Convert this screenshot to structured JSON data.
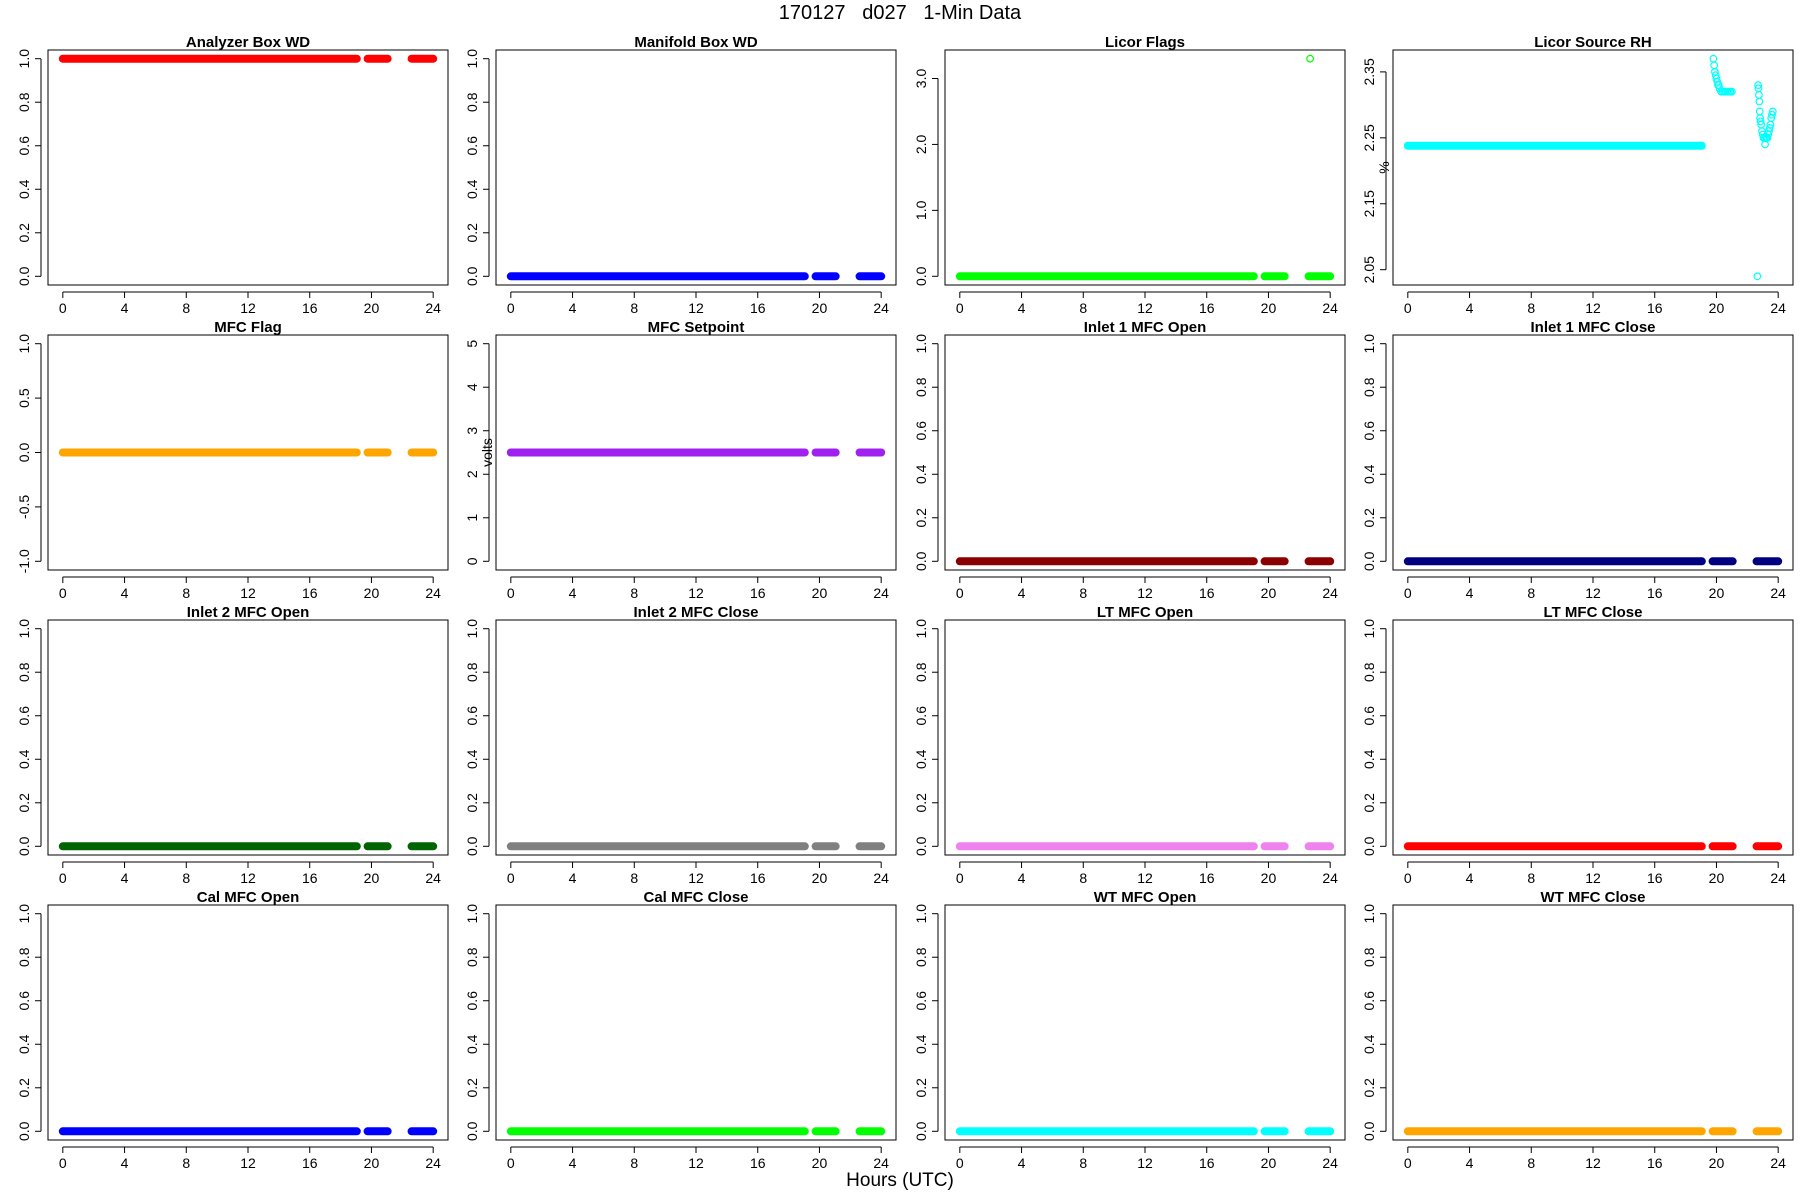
{
  "page": {
    "title": "170127   d027   1-Min Data",
    "xlabel": "Hours (UTC)"
  },
  "colors": {
    "red": "#ff0000",
    "blue": "#0000ff",
    "green": "#00ff00",
    "cyan": "#00ffff",
    "orange": "#ffa500",
    "purple": "#a020f0",
    "darkred": "#8b0000",
    "navy": "#000080",
    "darkgreen": "#006400",
    "gray": "#808080",
    "violet": "#ee82ee"
  },
  "chart_data": [
    {
      "type": "scatter",
      "title": "Analyzer Box WD",
      "ylabel": "",
      "color": "#ff0000",
      "xlim": [
        0,
        24
      ],
      "xticks": [
        0,
        4,
        8,
        12,
        16,
        20,
        24
      ],
      "ylim": [
        0,
        1
      ],
      "yticks": [
        0.0,
        0.2,
        0.4,
        0.6,
        0.8,
        1.0
      ],
      "ytick_labels": [
        "0.0",
        "0.2",
        "0.4",
        "0.6",
        "0.8",
        "1.0"
      ],
      "segments": [
        {
          "x": [
            0,
            19.05
          ],
          "y": 1
        },
        {
          "x": [
            19.75,
            21.05
          ],
          "y": 1
        },
        {
          "x": [
            22.6,
            24
          ],
          "y": 1
        }
      ]
    },
    {
      "type": "scatter",
      "title": "Manifold Box WD",
      "ylabel": "",
      "color": "#0000ff",
      "xlim": [
        0,
        24
      ],
      "xticks": [
        0,
        4,
        8,
        12,
        16,
        20,
        24
      ],
      "ylim": [
        0,
        1
      ],
      "yticks": [
        0.0,
        0.2,
        0.4,
        0.6,
        0.8,
        1.0
      ],
      "ytick_labels": [
        "0.0",
        "0.2",
        "0.4",
        "0.6",
        "0.8",
        "1.0"
      ],
      "segments": [
        {
          "x": [
            0,
            19.05
          ],
          "y": 0
        },
        {
          "x": [
            19.75,
            21.05
          ],
          "y": 0
        },
        {
          "x": [
            22.6,
            24
          ],
          "y": 0
        }
      ]
    },
    {
      "type": "scatter",
      "title": "Licor Flags",
      "ylabel": "",
      "color": "#00ff00",
      "xlim": [
        0,
        24
      ],
      "xticks": [
        0,
        4,
        8,
        12,
        16,
        20,
        24
      ],
      "ylim": [
        0,
        3.3
      ],
      "yticks": [
        0.0,
        1.0,
        2.0,
        3.0
      ],
      "ytick_labels": [
        "0.0",
        "1.0",
        "2.0",
        "3.0"
      ],
      "segments": [
        {
          "x": [
            0,
            19.05
          ],
          "y": 0
        },
        {
          "x": [
            19.75,
            21.05
          ],
          "y": 0
        },
        {
          "x": [
            22.6,
            24
          ],
          "y": 0
        }
      ],
      "points": [
        {
          "x": 22.7,
          "y": 3.3
        }
      ]
    },
    {
      "type": "scatter",
      "title": "Licor Source RH",
      "ylabel": "%",
      "color": "#00ffff",
      "xlim": [
        0,
        24
      ],
      "xticks": [
        0,
        4,
        8,
        12,
        16,
        20,
        24
      ],
      "ylim": [
        2.04,
        2.37
      ],
      "yticks": [
        2.05,
        2.15,
        2.25,
        2.35
      ],
      "ytick_labels": [
        "2.05",
        "2.15",
        "2.25",
        "2.35"
      ],
      "segments": [
        {
          "x": [
            0,
            19.05
          ],
          "y": 2.238
        }
      ],
      "points": [
        {
          "x": 19.8,
          "y": 2.37
        },
        {
          "x": 19.85,
          "y": 2.36
        },
        {
          "x": 19.9,
          "y": 2.35
        },
        {
          "x": 19.95,
          "y": 2.345
        },
        {
          "x": 20.0,
          "y": 2.34
        },
        {
          "x": 20.05,
          "y": 2.335
        },
        {
          "x": 20.1,
          "y": 2.33
        },
        {
          "x": 20.15,
          "y": 2.33
        },
        {
          "x": 20.2,
          "y": 2.325
        },
        {
          "x": 20.3,
          "y": 2.32
        },
        {
          "x": 20.4,
          "y": 2.32
        },
        {
          "x": 20.5,
          "y": 2.32
        },
        {
          "x": 20.6,
          "y": 2.32
        },
        {
          "x": 20.7,
          "y": 2.32
        },
        {
          "x": 20.8,
          "y": 2.32
        },
        {
          "x": 20.9,
          "y": 2.32
        },
        {
          "x": 21.0,
          "y": 2.32
        },
        {
          "x": 22.65,
          "y": 2.04
        },
        {
          "x": 22.7,
          "y": 2.33
        },
        {
          "x": 22.72,
          "y": 2.325
        },
        {
          "x": 22.75,
          "y": 2.315
        },
        {
          "x": 22.78,
          "y": 2.305
        },
        {
          "x": 22.8,
          "y": 2.29
        },
        {
          "x": 22.83,
          "y": 2.28
        },
        {
          "x": 22.86,
          "y": 2.275
        },
        {
          "x": 22.9,
          "y": 2.27
        },
        {
          "x": 22.95,
          "y": 2.26
        },
        {
          "x": 23.0,
          "y": 2.255
        },
        {
          "x": 23.05,
          "y": 2.25
        },
        {
          "x": 23.1,
          "y": 2.25
        },
        {
          "x": 23.15,
          "y": 2.24
        },
        {
          "x": 23.2,
          "y": 2.25
        },
        {
          "x": 23.25,
          "y": 2.25
        },
        {
          "x": 23.3,
          "y": 2.25
        },
        {
          "x": 23.35,
          "y": 2.255
        },
        {
          "x": 23.4,
          "y": 2.26
        },
        {
          "x": 23.45,
          "y": 2.265
        },
        {
          "x": 23.5,
          "y": 2.27
        },
        {
          "x": 23.55,
          "y": 2.28
        },
        {
          "x": 23.6,
          "y": 2.285
        },
        {
          "x": 23.65,
          "y": 2.29
        }
      ]
    },
    {
      "type": "scatter",
      "title": "MFC Flag",
      "ylabel": "",
      "color": "#ffa500",
      "xlim": [
        0,
        24
      ],
      "xticks": [
        0,
        4,
        8,
        12,
        16,
        20,
        24
      ],
      "ylim": [
        -1,
        1
      ],
      "yticks": [
        -1.0,
        -0.5,
        0.0,
        0.5,
        1.0
      ],
      "ytick_labels": [
        "-1.0",
        "-0.5",
        "0.0",
        "0.5",
        "1.0"
      ],
      "segments": [
        {
          "x": [
            0,
            19.05
          ],
          "y": 0
        },
        {
          "x": [
            19.75,
            21.05
          ],
          "y": 0
        },
        {
          "x": [
            22.6,
            24
          ],
          "y": 0
        }
      ]
    },
    {
      "type": "scatter",
      "title": "MFC Setpoint",
      "ylabel": "volts",
      "color": "#a020f0",
      "xlim": [
        0,
        24
      ],
      "xticks": [
        0,
        4,
        8,
        12,
        16,
        20,
        24
      ],
      "ylim": [
        0,
        5
      ],
      "yticks": [
        0,
        1,
        2,
        3,
        4,
        5
      ],
      "ytick_labels": [
        "0",
        "1",
        "2",
        "3",
        "4",
        "5"
      ],
      "segments": [
        {
          "x": [
            0,
            19.05
          ],
          "y": 2.5
        },
        {
          "x": [
            19.75,
            21.05
          ],
          "y": 2.5
        },
        {
          "x": [
            22.6,
            24
          ],
          "y": 2.5
        }
      ]
    },
    {
      "type": "scatter",
      "title": "Inlet 1 MFC Open",
      "ylabel": "",
      "color": "#8b0000",
      "xlim": [
        0,
        24
      ],
      "xticks": [
        0,
        4,
        8,
        12,
        16,
        20,
        24
      ],
      "ylim": [
        0,
        1
      ],
      "yticks": [
        0.0,
        0.2,
        0.4,
        0.6,
        0.8,
        1.0
      ],
      "ytick_labels": [
        "0.0",
        "0.2",
        "0.4",
        "0.6",
        "0.8",
        "1.0"
      ],
      "segments": [
        {
          "x": [
            0,
            19.05
          ],
          "y": 0
        },
        {
          "x": [
            19.75,
            21.05
          ],
          "y": 0
        },
        {
          "x": [
            22.6,
            24
          ],
          "y": 0
        }
      ]
    },
    {
      "type": "scatter",
      "title": "Inlet 1 MFC Close",
      "ylabel": "",
      "color": "#000080",
      "xlim": [
        0,
        24
      ],
      "xticks": [
        0,
        4,
        8,
        12,
        16,
        20,
        24
      ],
      "ylim": [
        0,
        1
      ],
      "yticks": [
        0.0,
        0.2,
        0.4,
        0.6,
        0.8,
        1.0
      ],
      "ytick_labels": [
        "0.0",
        "0.2",
        "0.4",
        "0.6",
        "0.8",
        "1.0"
      ],
      "segments": [
        {
          "x": [
            0,
            19.05
          ],
          "y": 0
        },
        {
          "x": [
            19.75,
            21.05
          ],
          "y": 0
        },
        {
          "x": [
            22.6,
            24
          ],
          "y": 0
        }
      ]
    },
    {
      "type": "scatter",
      "title": "Inlet 2 MFC Open",
      "ylabel": "",
      "color": "#006400",
      "xlim": [
        0,
        24
      ],
      "xticks": [
        0,
        4,
        8,
        12,
        16,
        20,
        24
      ],
      "ylim": [
        0,
        1
      ],
      "yticks": [
        0.0,
        0.2,
        0.4,
        0.6,
        0.8,
        1.0
      ],
      "ytick_labels": [
        "0.0",
        "0.2",
        "0.4",
        "0.6",
        "0.8",
        "1.0"
      ],
      "segments": [
        {
          "x": [
            0,
            19.05
          ],
          "y": 0
        },
        {
          "x": [
            19.75,
            21.05
          ],
          "y": 0
        },
        {
          "x": [
            22.6,
            24
          ],
          "y": 0
        }
      ]
    },
    {
      "type": "scatter",
      "title": "Inlet 2 MFC Close",
      "ylabel": "",
      "color": "#808080",
      "xlim": [
        0,
        24
      ],
      "xticks": [
        0,
        4,
        8,
        12,
        16,
        20,
        24
      ],
      "ylim": [
        0,
        1
      ],
      "yticks": [
        0.0,
        0.2,
        0.4,
        0.6,
        0.8,
        1.0
      ],
      "ytick_labels": [
        "0.0",
        "0.2",
        "0.4",
        "0.6",
        "0.8",
        "1.0"
      ],
      "segments": [
        {
          "x": [
            0,
            19.05
          ],
          "y": 0
        },
        {
          "x": [
            19.75,
            21.05
          ],
          "y": 0
        },
        {
          "x": [
            22.6,
            24
          ],
          "y": 0
        }
      ]
    },
    {
      "type": "scatter",
      "title": "LT MFC Open",
      "ylabel": "",
      "color": "#ee82ee",
      "xlim": [
        0,
        24
      ],
      "xticks": [
        0,
        4,
        8,
        12,
        16,
        20,
        24
      ],
      "ylim": [
        0,
        1
      ],
      "yticks": [
        0.0,
        0.2,
        0.4,
        0.6,
        0.8,
        1.0
      ],
      "ytick_labels": [
        "0.0",
        "0.2",
        "0.4",
        "0.6",
        "0.8",
        "1.0"
      ],
      "segments": [
        {
          "x": [
            0,
            19.05
          ],
          "y": 0
        },
        {
          "x": [
            19.75,
            21.05
          ],
          "y": 0
        },
        {
          "x": [
            22.6,
            24
          ],
          "y": 0
        }
      ]
    },
    {
      "type": "scatter",
      "title": "LT MFC Close",
      "ylabel": "",
      "color": "#ff0000",
      "xlim": [
        0,
        24
      ],
      "xticks": [
        0,
        4,
        8,
        12,
        16,
        20,
        24
      ],
      "ylim": [
        0,
        1
      ],
      "yticks": [
        0.0,
        0.2,
        0.4,
        0.6,
        0.8,
        1.0
      ],
      "ytick_labels": [
        "0.0",
        "0.2",
        "0.4",
        "0.6",
        "0.8",
        "1.0"
      ],
      "segments": [
        {
          "x": [
            0,
            19.05
          ],
          "y": 0
        },
        {
          "x": [
            19.75,
            21.05
          ],
          "y": 0
        },
        {
          "x": [
            22.6,
            24
          ],
          "y": 0
        }
      ]
    },
    {
      "type": "scatter",
      "title": "Cal MFC Open",
      "ylabel": "",
      "color": "#0000ff",
      "xlim": [
        0,
        24
      ],
      "xticks": [
        0,
        4,
        8,
        12,
        16,
        20,
        24
      ],
      "ylim": [
        0,
        1
      ],
      "yticks": [
        0.0,
        0.2,
        0.4,
        0.6,
        0.8,
        1.0
      ],
      "ytick_labels": [
        "0.0",
        "0.2",
        "0.4",
        "0.6",
        "0.8",
        "1.0"
      ],
      "segments": [
        {
          "x": [
            0,
            19.05
          ],
          "y": 0
        },
        {
          "x": [
            19.75,
            21.05
          ],
          "y": 0
        },
        {
          "x": [
            22.6,
            24
          ],
          "y": 0
        }
      ]
    },
    {
      "type": "scatter",
      "title": "Cal MFC Close",
      "ylabel": "",
      "color": "#00ff00",
      "xlim": [
        0,
        24
      ],
      "xticks": [
        0,
        4,
        8,
        12,
        16,
        20,
        24
      ],
      "ylim": [
        0,
        1
      ],
      "yticks": [
        0.0,
        0.2,
        0.4,
        0.6,
        0.8,
        1.0
      ],
      "ytick_labels": [
        "0.0",
        "0.2",
        "0.4",
        "0.6",
        "0.8",
        "1.0"
      ],
      "segments": [
        {
          "x": [
            0,
            19.05
          ],
          "y": 0
        },
        {
          "x": [
            19.75,
            21.05
          ],
          "y": 0
        },
        {
          "x": [
            22.6,
            24
          ],
          "y": 0
        }
      ]
    },
    {
      "type": "scatter",
      "title": "WT MFC Open",
      "ylabel": "",
      "color": "#00ffff",
      "xlim": [
        0,
        24
      ],
      "xticks": [
        0,
        4,
        8,
        12,
        16,
        20,
        24
      ],
      "ylim": [
        0,
        1
      ],
      "yticks": [
        0.0,
        0.2,
        0.4,
        0.6,
        0.8,
        1.0
      ],
      "ytick_labels": [
        "0.0",
        "0.2",
        "0.4",
        "0.6",
        "0.8",
        "1.0"
      ],
      "segments": [
        {
          "x": [
            0,
            19.05
          ],
          "y": 0
        },
        {
          "x": [
            19.75,
            21.05
          ],
          "y": 0
        },
        {
          "x": [
            22.6,
            24
          ],
          "y": 0
        }
      ]
    },
    {
      "type": "scatter",
      "title": "WT MFC Close",
      "ylabel": "",
      "color": "#ffa500",
      "xlim": [
        0,
        24
      ],
      "xticks": [
        0,
        4,
        8,
        12,
        16,
        20,
        24
      ],
      "ylim": [
        0,
        1
      ],
      "yticks": [
        0.0,
        0.2,
        0.4,
        0.6,
        0.8,
        1.0
      ],
      "ytick_labels": [
        "0.0",
        "0.2",
        "0.4",
        "0.6",
        "0.8",
        "1.0"
      ],
      "segments": [
        {
          "x": [
            0,
            19.05
          ],
          "y": 0
        },
        {
          "x": [
            19.75,
            21.05
          ],
          "y": 0
        },
        {
          "x": [
            22.6,
            24
          ],
          "y": 0
        }
      ]
    }
  ]
}
